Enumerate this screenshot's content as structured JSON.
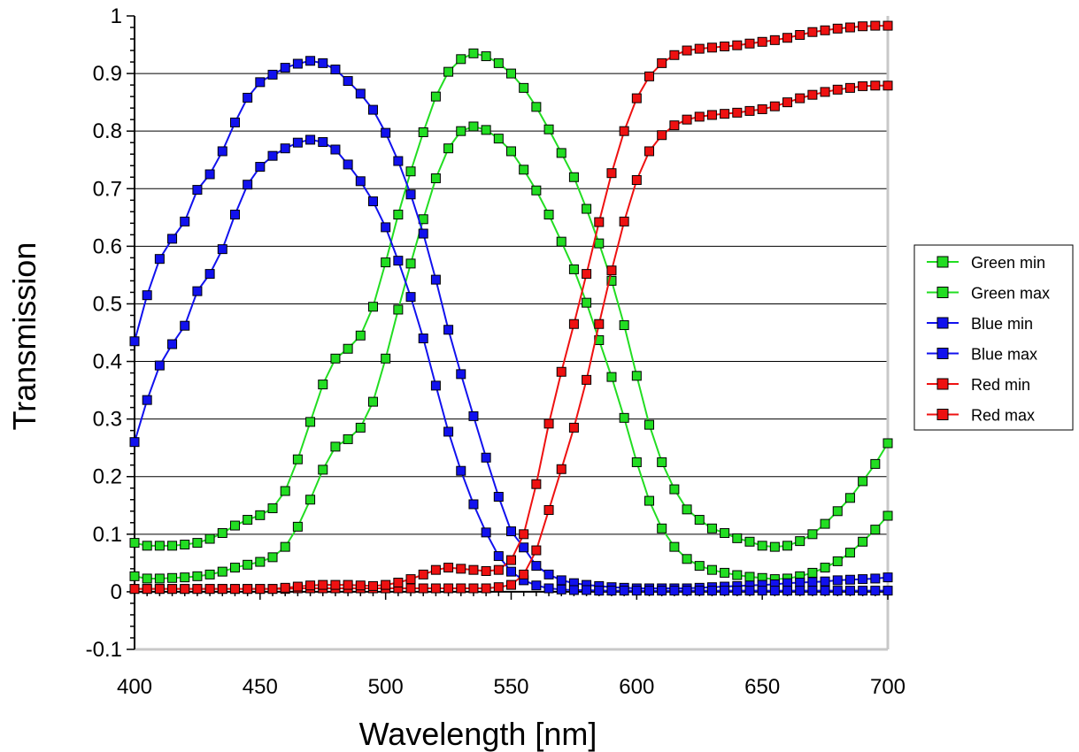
{
  "chart_data": {
    "type": "line",
    "title": "",
    "xlabel": "Wavelength [nm]",
    "ylabel": "Transmission",
    "xlim": [
      400,
      700
    ],
    "ylim": [
      -0.1,
      1
    ],
    "x_ticks": [
      "400",
      "450",
      "500",
      "550",
      "600",
      "650",
      "700"
    ],
    "y_ticks": [
      "-0.1",
      "0",
      "0.1",
      "0.2",
      "0.3",
      "0.4",
      "0.5",
      "0.6",
      "0.7",
      "0.8",
      "0.9",
      "1"
    ],
    "grid": "horizontal",
    "legend_position": "right",
    "marker": "square",
    "x": [
      400,
      405,
      410,
      415,
      420,
      425,
      430,
      435,
      440,
      445,
      450,
      455,
      460,
      465,
      470,
      475,
      480,
      485,
      490,
      495,
      500,
      505,
      510,
      515,
      520,
      525,
      530,
      535,
      540,
      545,
      550,
      555,
      560,
      565,
      570,
      575,
      580,
      585,
      590,
      595,
      600,
      605,
      610,
      615,
      620,
      625,
      630,
      635,
      640,
      645,
      650,
      655,
      660,
      665,
      670,
      675,
      680,
      685,
      690,
      695,
      700
    ],
    "series": [
      {
        "name": "Green min",
        "color": "#22dd22",
        "values": [
          0.085,
          0.08,
          0.08,
          0.08,
          0.082,
          0.085,
          0.092,
          0.102,
          0.115,
          0.125,
          0.133,
          0.145,
          0.175,
          0.23,
          0.295,
          0.36,
          0.405,
          0.422,
          0.445,
          0.495,
          0.572,
          0.655,
          0.73,
          0.798,
          0.86,
          0.903,
          0.925,
          0.935,
          0.93,
          0.918,
          0.9,
          0.875,
          0.842,
          0.803,
          0.762,
          0.72,
          0.665,
          0.605,
          0.54,
          0.463,
          0.375,
          0.29,
          0.225,
          0.178,
          0.143,
          0.125,
          0.11,
          0.102,
          0.093,
          0.087,
          0.08,
          0.078,
          0.08,
          0.088,
          0.1,
          0.118,
          0.14,
          0.163,
          0.192,
          0.222,
          0.258
        ]
      },
      {
        "name": "Green max",
        "color": "#22dd22",
        "values": [
          0.027,
          0.023,
          0.023,
          0.024,
          0.025,
          0.027,
          0.03,
          0.035,
          0.042,
          0.047,
          0.052,
          0.06,
          0.078,
          0.113,
          0.16,
          0.212,
          0.252,
          0.265,
          0.285,
          0.33,
          0.405,
          0.49,
          0.57,
          0.647,
          0.718,
          0.77,
          0.8,
          0.808,
          0.802,
          0.787,
          0.765,
          0.733,
          0.697,
          0.655,
          0.608,
          0.56,
          0.502,
          0.437,
          0.373,
          0.302,
          0.225,
          0.158,
          0.11,
          0.078,
          0.057,
          0.045,
          0.038,
          0.033,
          0.029,
          0.026,
          0.024,
          0.022,
          0.023,
          0.027,
          0.033,
          0.042,
          0.053,
          0.068,
          0.087,
          0.108,
          0.132
        ]
      },
      {
        "name": "Blue min",
        "color": "#1111ee",
        "values": [
          0.435,
          0.515,
          0.578,
          0.613,
          0.643,
          0.698,
          0.725,
          0.765,
          0.815,
          0.858,
          0.885,
          0.898,
          0.91,
          0.917,
          0.922,
          0.918,
          0.907,
          0.887,
          0.865,
          0.837,
          0.797,
          0.748,
          0.69,
          0.622,
          0.542,
          0.455,
          0.378,
          0.305,
          0.233,
          0.165,
          0.105,
          0.077,
          0.045,
          0.03,
          0.02,
          0.015,
          0.012,
          0.01,
          0.008,
          0.007,
          0.006,
          0.006,
          0.006,
          0.006,
          0.006,
          0.007,
          0.008,
          0.009,
          0.01,
          0.011,
          0.012,
          0.013,
          0.015,
          0.016,
          0.017,
          0.018,
          0.02,
          0.021,
          0.022,
          0.023,
          0.025
        ]
      },
      {
        "name": "Blue max",
        "color": "#1111ee",
        "values": [
          0.26,
          0.333,
          0.393,
          0.43,
          0.462,
          0.522,
          0.552,
          0.595,
          0.655,
          0.707,
          0.738,
          0.757,
          0.77,
          0.78,
          0.785,
          0.781,
          0.768,
          0.742,
          0.713,
          0.678,
          0.633,
          0.575,
          0.512,
          0.44,
          0.358,
          0.278,
          0.21,
          0.152,
          0.103,
          0.062,
          0.035,
          0.02,
          0.011,
          0.006,
          0.004,
          0.003,
          0.003,
          0.002,
          0.002,
          0.002,
          0.002,
          0.002,
          0.002,
          0.002,
          0.002,
          0.002,
          0.002,
          0.002,
          0.002,
          0.002,
          0.002,
          0.002,
          0.002,
          0.002,
          0.002,
          0.002,
          0.002,
          0.002,
          0.002,
          0.002,
          0.002
        ]
      },
      {
        "name": "Red min",
        "color": "#ee1111",
        "values": [
          0.005,
          0.005,
          0.005,
          0.005,
          0.005,
          0.005,
          0.005,
          0.005,
          0.005,
          0.005,
          0.005,
          0.005,
          0.005,
          0.006,
          0.006,
          0.006,
          0.006,
          0.006,
          0.006,
          0.006,
          0.006,
          0.006,
          0.006,
          0.006,
          0.006,
          0.006,
          0.006,
          0.006,
          0.006,
          0.008,
          0.012,
          0.03,
          0.072,
          0.142,
          0.213,
          0.285,
          0.368,
          0.465,
          0.558,
          0.643,
          0.715,
          0.765,
          0.793,
          0.81,
          0.82,
          0.825,
          0.828,
          0.83,
          0.832,
          0.835,
          0.838,
          0.843,
          0.85,
          0.857,
          0.863,
          0.868,
          0.872,
          0.875,
          0.878,
          0.879,
          0.879
        ]
      },
      {
        "name": "Red max",
        "color": "#ee1111",
        "values": [
          0.005,
          0.005,
          0.005,
          0.005,
          0.005,
          0.005,
          0.005,
          0.005,
          0.005,
          0.005,
          0.005,
          0.005,
          0.007,
          0.009,
          0.011,
          0.012,
          0.012,
          0.012,
          0.011,
          0.01,
          0.012,
          0.016,
          0.022,
          0.03,
          0.038,
          0.042,
          0.04,
          0.038,
          0.036,
          0.038,
          0.055,
          0.1,
          0.187,
          0.292,
          0.382,
          0.465,
          0.552,
          0.642,
          0.727,
          0.8,
          0.857,
          0.895,
          0.918,
          0.932,
          0.94,
          0.943,
          0.945,
          0.947,
          0.949,
          0.952,
          0.955,
          0.958,
          0.962,
          0.967,
          0.972,
          0.975,
          0.978,
          0.98,
          0.982,
          0.983,
          0.983
        ]
      }
    ]
  }
}
